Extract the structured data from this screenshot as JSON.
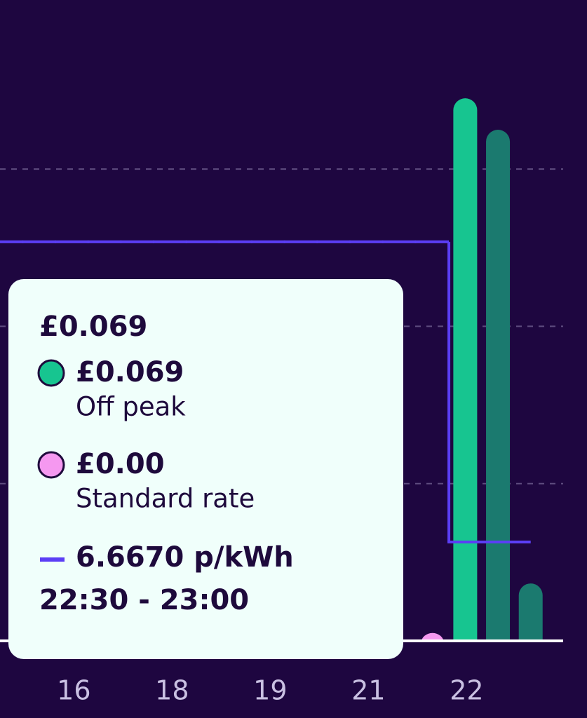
{
  "chart_data": {
    "type": "bar",
    "categories": [
      null,
      null,
      "16",
      null,
      null,
      "18",
      null,
      null,
      "19",
      null,
      null,
      "21",
      null,
      null,
      "22",
      null,
      null
    ],
    "series": [
      {
        "name": "Off peak",
        "color": "#1b7a6f",
        "highlight_color": "#17c590",
        "highlight": 14,
        "values": [
          null,
          null,
          null,
          null,
          null,
          null,
          null,
          null,
          null,
          null,
          null,
          null,
          null,
          null,
          0.069,
          0.065,
          0.0073
        ]
      },
      {
        "name": "Standard rate",
        "color": "#f598f0",
        "values": [
          null,
          null,
          null,
          null,
          null,
          null,
          null,
          null,
          null,
          null,
          null,
          null,
          null,
          0.001,
          null,
          null,
          null
        ]
      },
      {
        "axis": "y2",
        "type": "step",
        "color": "#5b3ef5",
        "values": [
          26.9,
          26.9,
          26.9,
          26.9,
          26.9,
          26.9,
          26.9,
          26.9,
          26.9,
          26.9,
          26.9,
          26.9,
          26.9,
          26.9,
          6.667,
          6.667,
          6.667
        ]
      }
    ],
    "ylim": [
      0,
      0.0815
    ],
    "yticks": [
      0.02,
      0.04,
      0.06
    ],
    "grid": true,
    "y2lim": [
      0,
      43.2
    ],
    "tooltip": {
      "title": "£0.069",
      "items": [
        "£0.069",
        "£0.00"
      ],
      "rate": "6.6670 p/kWh",
      "time": "22:30 - 23:00"
    }
  }
}
